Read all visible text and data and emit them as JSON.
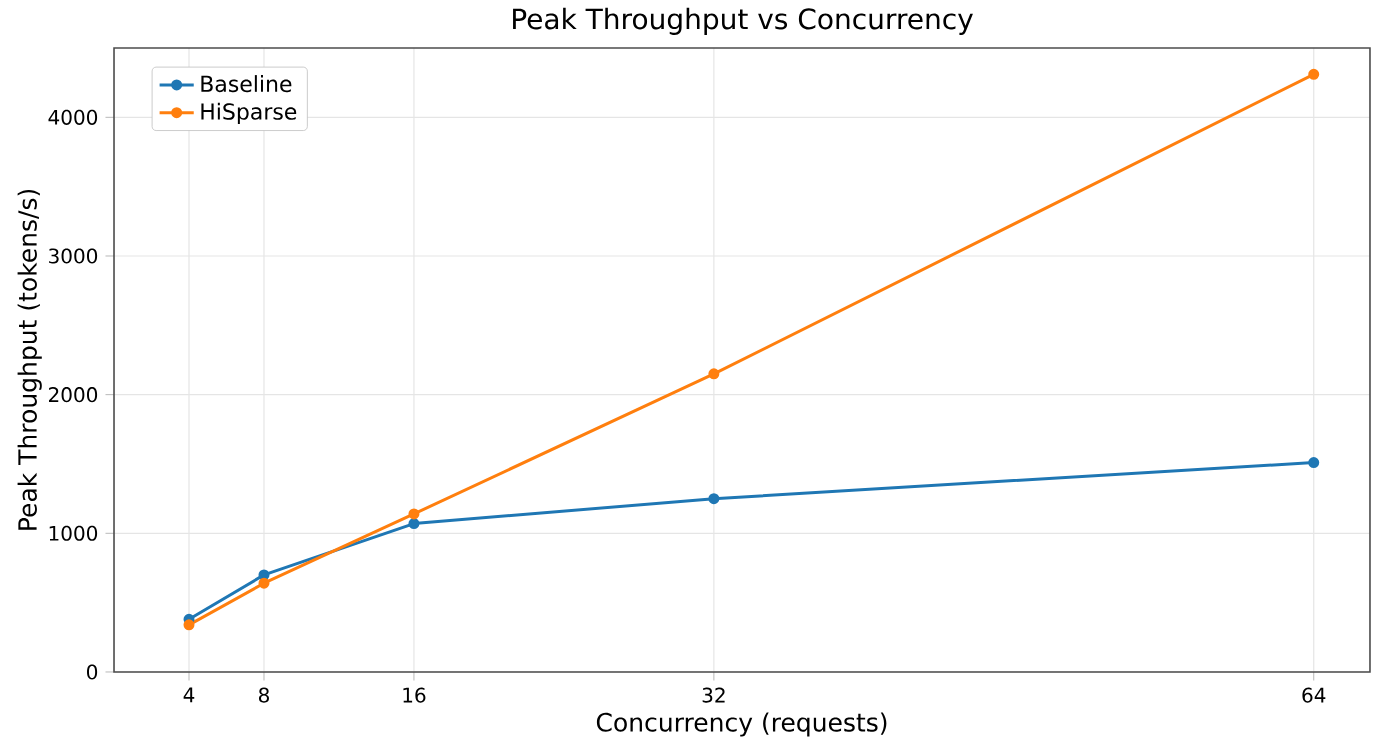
{
  "chart_data": {
    "type": "line",
    "title": "Peak Throughput vs Concurrency",
    "xlabel": "Concurrency (requests)",
    "ylabel": "Peak Throughput (tokens/s)",
    "x": [
      4,
      8,
      16,
      32,
      64
    ],
    "series": [
      {
        "name": "Baseline",
        "color": "#1f77b4",
        "values": [
          380,
          700,
          1070,
          1250,
          1510
        ]
      },
      {
        "name": "HiSparse",
        "color": "#ff7f0e",
        "values": [
          340,
          640,
          1140,
          2150,
          4310
        ]
      }
    ],
    "xlim": [
      0,
      67
    ],
    "ylim": [
      0,
      4500
    ],
    "xticks": [
      4,
      8,
      16,
      32,
      64
    ],
    "yticks": [
      0,
      1000,
      2000,
      3000,
      4000
    ],
    "grid": true,
    "legend": "top left",
    "marker": "circle",
    "line_style": "solid"
  }
}
